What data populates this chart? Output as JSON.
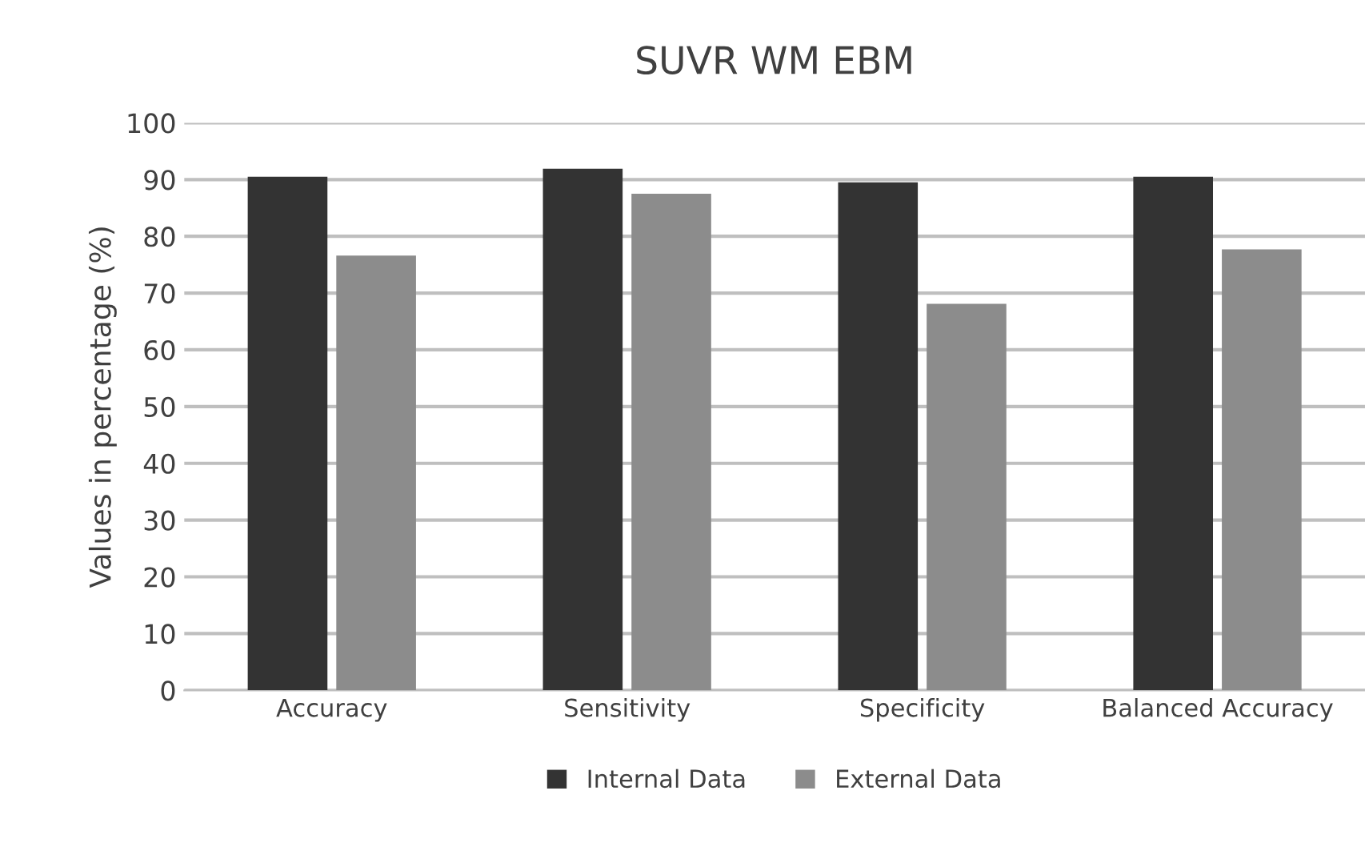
{
  "chart_data": {
    "type": "bar",
    "title": "SUVR WM EBM",
    "ylabel": "Values in percentage (%)",
    "categories": [
      "Accuracy",
      "Sensitivity",
      "Specificity",
      "Balanced Accuracy"
    ],
    "series": [
      {
        "name": "Internal Data",
        "color": "#333333",
        "values": [
          90.5,
          91.9,
          89.5,
          90.5
        ]
      },
      {
        "name": "External Data",
        "color": "#8c8c8c",
        "values": [
          76.6,
          87.5,
          68.1,
          77.7
        ]
      }
    ],
    "ylim": [
      0,
      100
    ],
    "yticks": [
      0,
      10,
      20,
      30,
      40,
      50,
      60,
      70,
      80,
      90,
      100
    ],
    "grid": "y",
    "legend": "bottom"
  }
}
